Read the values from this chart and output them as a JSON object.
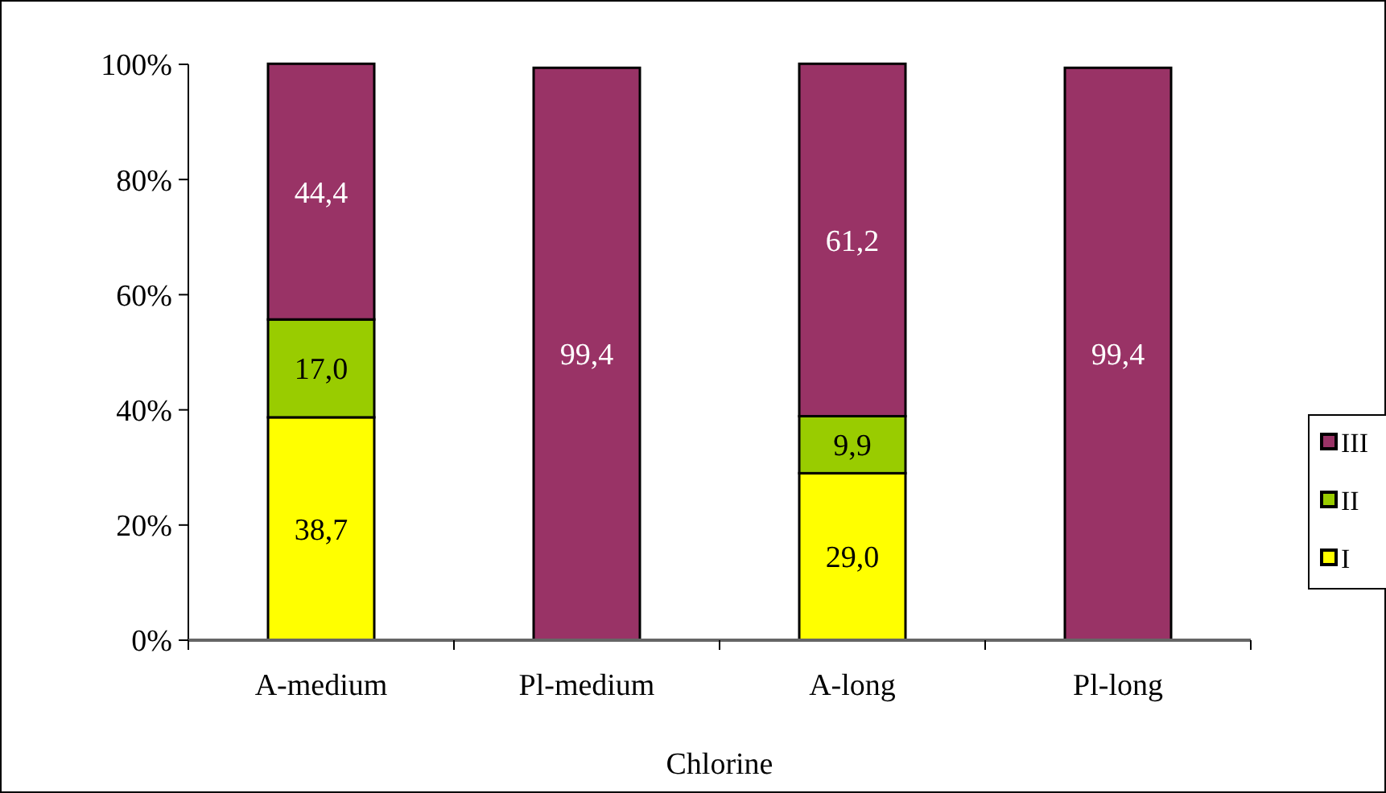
{
  "chart_data": {
    "type": "bar",
    "stacked": true,
    "xlabel": "Chlorine",
    "categories": [
      "A-medium",
      "Pl-medium",
      "A-long",
      "Pl-long"
    ],
    "series": [
      {
        "name": "I",
        "color": "#ffff00",
        "values": [
          38.7,
          null,
          29.0,
          null
        ],
        "value_labels": [
          "38,7",
          null,
          "29,0",
          null
        ]
      },
      {
        "name": "II",
        "color": "#99cc00",
        "values": [
          17.0,
          null,
          9.9,
          null
        ],
        "value_labels": [
          "17,0",
          null,
          "9,9",
          null
        ]
      },
      {
        "name": "III",
        "color": "#993366",
        "values": [
          44.4,
          99.4,
          61.2,
          99.4
        ],
        "value_labels": [
          "44,4",
          "99,4",
          "61,2",
          "99,4"
        ]
      }
    ],
    "ylim": [
      0,
      100
    ],
    "yticks": [
      {
        "value": 0,
        "label": "0%"
      },
      {
        "value": 20,
        "label": "20%"
      },
      {
        "value": 40,
        "label": "40%"
      },
      {
        "value": 60,
        "label": "60%"
      },
      {
        "value": 80,
        "label": "80%"
      },
      {
        "value": 100,
        "label": "100%"
      }
    ],
    "grid": false,
    "legend": "right"
  }
}
